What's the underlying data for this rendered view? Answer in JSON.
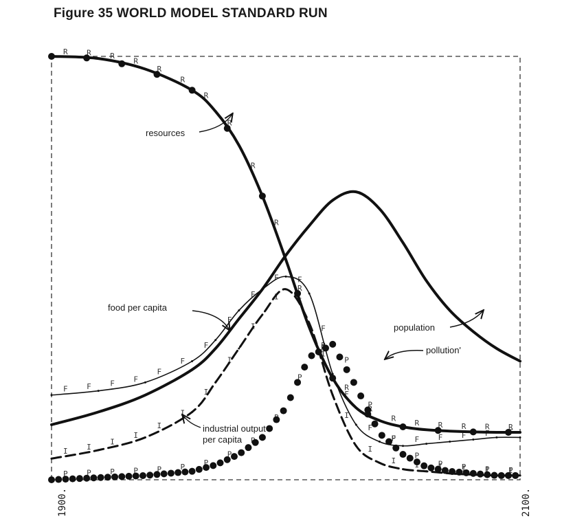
{
  "title": "Figure 35 WORLD MODEL STANDARD RUN",
  "chart_data": {
    "type": "line",
    "title": "Figure 35 WORLD MODEL STANDARD RUN",
    "x_tick_labels": [
      "1900.",
      "2100."
    ],
    "xlim": [
      1900,
      2100
    ],
    "grid": false,
    "border": "dashed",
    "series": [
      {
        "name": "resources",
        "style": "heavy line with dots",
        "color": "#111111",
        "x": [
          1900,
          1920,
          1940,
          1960,
          1970,
          1980,
          1990,
          2000,
          2010,
          2020,
          2030,
          2040,
          2050,
          2060,
          2070,
          2080,
          2090,
          2100
        ],
        "values": [
          1.0,
          0.995,
          0.97,
          0.92,
          0.87,
          0.79,
          0.67,
          0.52,
          0.36,
          0.24,
          0.17,
          0.14,
          0.125,
          0.118,
          0.115,
          0.113,
          0.112,
          0.112
        ]
      },
      {
        "name": "population",
        "style": "heavy solid line",
        "color": "#111111",
        "x": [
          1900,
          1920,
          1940,
          1960,
          1970,
          1980,
          1990,
          2000,
          2010,
          2020,
          2030,
          2040,
          2050,
          2060,
          2070,
          2080,
          2090,
          2100
        ],
        "values": [
          0.13,
          0.16,
          0.2,
          0.26,
          0.31,
          0.38,
          0.45,
          0.53,
          0.6,
          0.66,
          0.68,
          0.64,
          0.56,
          0.47,
          0.4,
          0.35,
          0.31,
          0.28
        ]
      },
      {
        "name": "food per capita",
        "style": "thin line",
        "color": "#111111",
        "x": [
          1900,
          1920,
          1940,
          1960,
          1970,
          1980,
          1990,
          2000,
          2010,
          2020,
          2030,
          2040,
          2050,
          2060,
          2070,
          2080,
          2090,
          2100
        ],
        "values": [
          0.2,
          0.21,
          0.23,
          0.28,
          0.33,
          0.4,
          0.45,
          0.48,
          0.44,
          0.25,
          0.13,
          0.09,
          0.08,
          0.085,
          0.09,
          0.095,
          0.1,
          0.1
        ]
      },
      {
        "name": "industrial output per capita",
        "style": "dashed line",
        "color": "#111111",
        "x": [
          1900,
          1920,
          1940,
          1960,
          1970,
          1980,
          1990,
          2000,
          2010,
          2020,
          2030,
          2040,
          2050,
          2060,
          2070,
          2080,
          2090,
          2100
        ],
        "values": [
          0.05,
          0.07,
          0.1,
          0.16,
          0.23,
          0.31,
          0.39,
          0.45,
          0.37,
          0.2,
          0.08,
          0.04,
          0.025,
          0.02,
          0.015,
          0.012,
          0.01,
          0.01
        ]
      },
      {
        "name": "pollution",
        "style": "dots",
        "color": "#111111",
        "x": [
          1900,
          1920,
          1940,
          1960,
          1970,
          1980,
          1990,
          2000,
          2010,
          2020,
          2030,
          2040,
          2050,
          2060,
          2070,
          2080,
          2090,
          2100
        ],
        "values": [
          0.0,
          0.005,
          0.01,
          0.02,
          0.035,
          0.06,
          0.1,
          0.17,
          0.29,
          0.32,
          0.22,
          0.11,
          0.06,
          0.03,
          0.02,
          0.015,
          0.01,
          0.01
        ]
      }
    ],
    "annotations": [
      {
        "text": "resources",
        "target_series": "resources"
      },
      {
        "text": "food per capita",
        "target_series": "food per capita"
      },
      {
        "text": "population",
        "target_series": "population"
      },
      {
        "text": "pollution'",
        "target_series": "pollution"
      },
      {
        "text": "industrial output",
        "target_series": "industrial output per capita"
      },
      {
        "text": "per capita",
        "target_series": "industrial output per capita"
      }
    ]
  }
}
